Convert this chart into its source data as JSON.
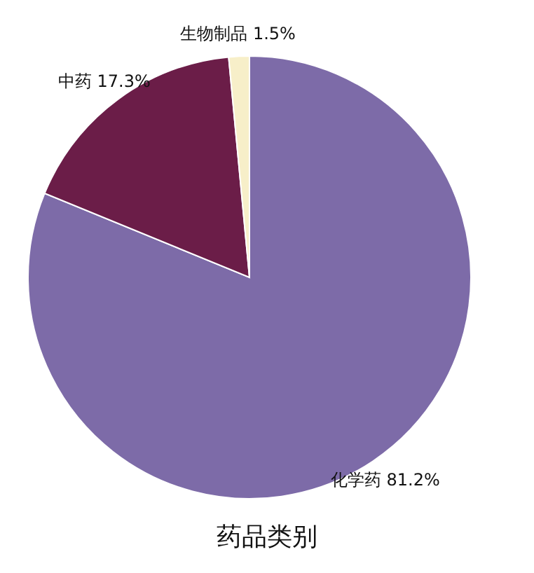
{
  "chart_data": {
    "type": "pie",
    "title": "药品类别",
    "categories": [
      "化学药",
      "中药",
      "生物制品"
    ],
    "values": [
      81.2,
      17.3,
      1.5
    ],
    "colors": [
      "#7d6ba8",
      "#6b1d48",
      "#f7efc9"
    ],
    "value_labels": [
      "81.2%",
      "17.3%",
      "1.5%"
    ]
  }
}
